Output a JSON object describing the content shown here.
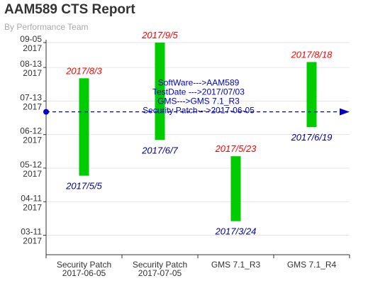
{
  "header": {
    "title": "AAM589 CTS Report",
    "subtitle": "By Performance Team"
  },
  "chart_data": {
    "type": "floating-bar",
    "categories": [
      [
        "Security Patch",
        "2017-06-05"
      ],
      [
        "Security Patch",
        "2017-07-05"
      ],
      [
        "GMS 7.1_R3"
      ],
      [
        "GMS 7.1_R4"
      ]
    ],
    "bars": [
      {
        "category": 0,
        "start": "2017-05-05",
        "end": "2017-08-03",
        "start_label": "2017/5/5",
        "end_label": "2017/8/3"
      },
      {
        "category": 1,
        "start": "2017-06-07",
        "end": "2017-09-05",
        "start_label": "2017/6/7",
        "end_label": "2017/9/5"
      },
      {
        "category": 2,
        "start": "2017-03-24",
        "end": "2017-05-23",
        "start_label": "2017/3/24",
        "end_label": "2017/5/23"
      },
      {
        "category": 3,
        "start": "2017-06-19",
        "end": "2017-08-18",
        "start_label": "2017/6/19",
        "end_label": "2017/8/18"
      }
    ],
    "yticks": [
      {
        "date": "2017-09-05",
        "line1": "09-05",
        "line2": "2017"
      },
      {
        "date": "2017-08-13",
        "line1": "08-13",
        "line2": "2017"
      },
      {
        "date": "2017-07-13",
        "line1": "07-13",
        "line2": "2017"
      },
      {
        "date": "2017-06-12",
        "line1": "06-12",
        "line2": "2017"
      },
      {
        "date": "2017-05-12",
        "line1": "05-12",
        "line2": "2017"
      },
      {
        "date": "2017-04-11",
        "line1": "04-11",
        "line2": "2017"
      },
      {
        "date": "2017-03-11",
        "line1": "03-11",
        "line2": "2017"
      }
    ],
    "ylim": [
      "2017-02-21",
      "2017-09-05"
    ],
    "marker_line": {
      "date": "2017-07-03",
      "annotation": [
        "SoftWare--->AAM589",
        "TestDate --->2017/07/03",
        "GMS--->GMS 7.1_R3",
        "Security Patch--->2017-06-05"
      ]
    },
    "colors": {
      "bar": "#00cc00",
      "end_label": "#ff0000",
      "start_label": "#000099",
      "marker": "#0000cc",
      "axis": "#333333",
      "grid": "#e6e6e6"
    },
    "grid": true
  }
}
